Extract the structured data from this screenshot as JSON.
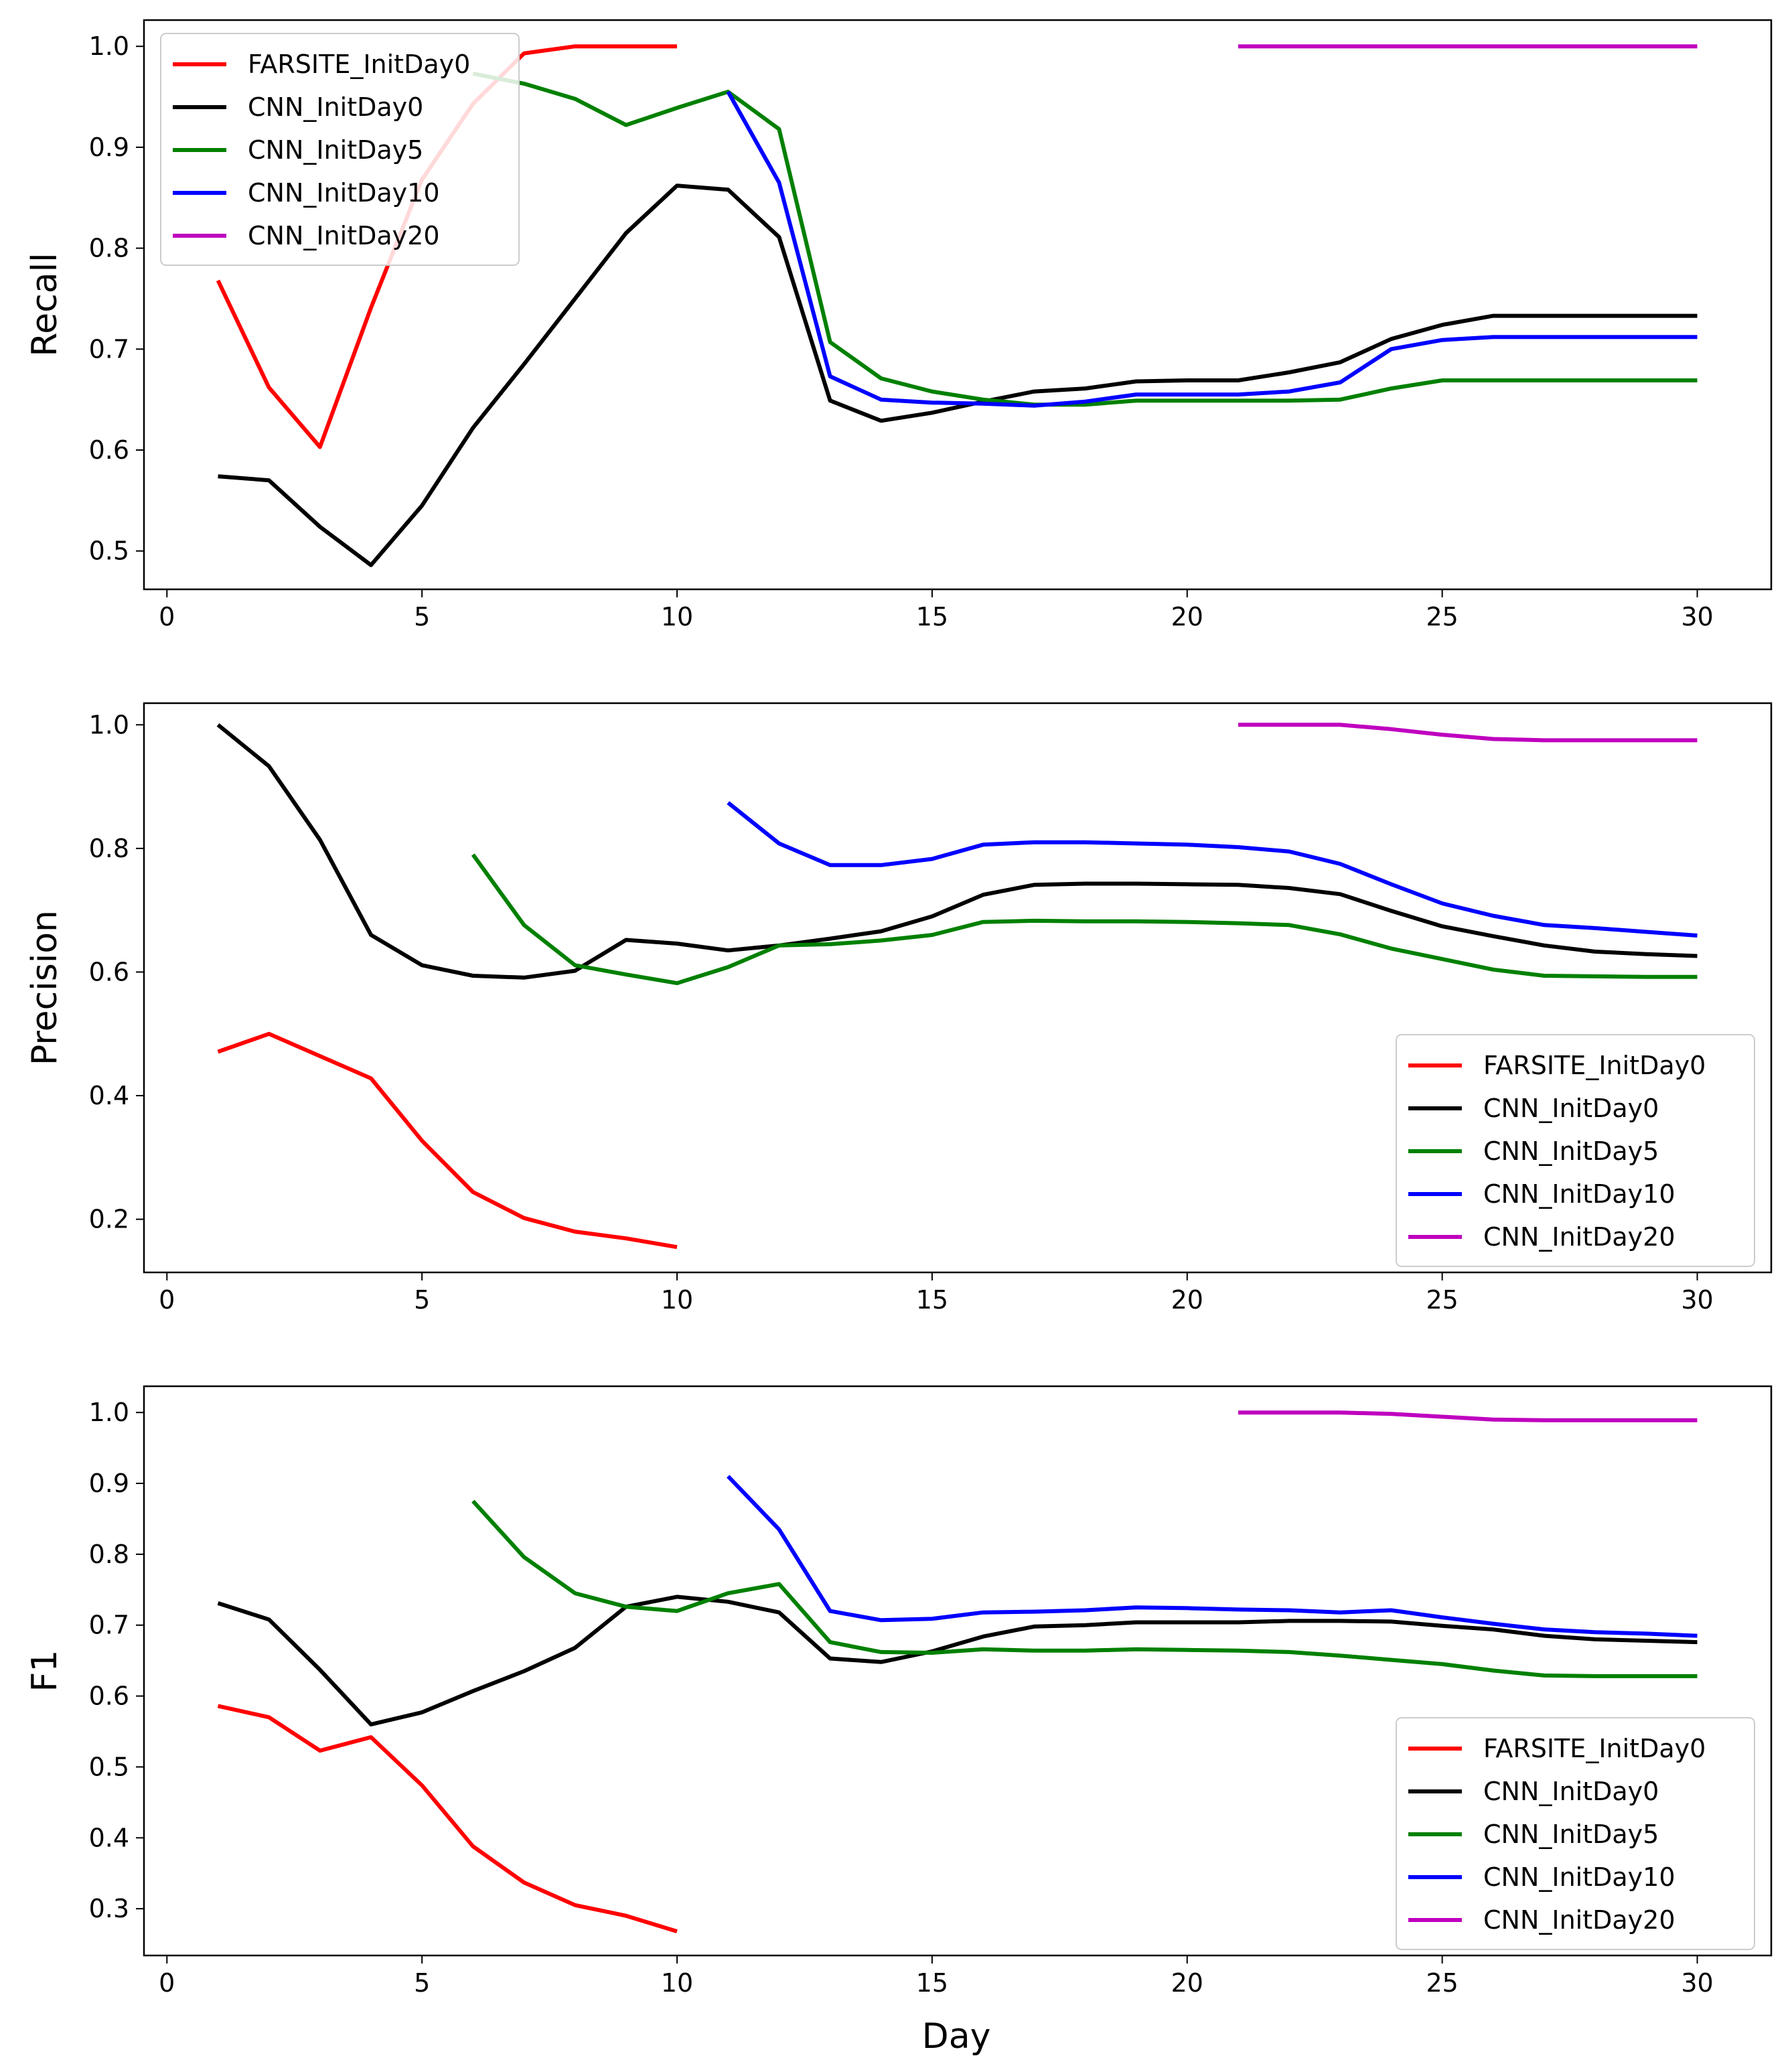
{
  "figure": {
    "xlabel": "Day"
  },
  "chart_data": [
    {
      "type": "line",
      "title": "",
      "xlabel": "",
      "ylabel": "Recall",
      "xlim": [
        -0.45,
        31.45
      ],
      "ylim": [
        0.462,
        1.026
      ],
      "xticks": [
        0,
        5,
        10,
        15,
        20,
        25,
        30
      ],
      "yticks": [
        0.5,
        0.6,
        0.7,
        0.8,
        0.9,
        1.0
      ],
      "xtick_labels": [
        "0",
        "5",
        "10",
        "15",
        "20",
        "25",
        "30"
      ],
      "ytick_labels": [
        "0.5",
        "0.6",
        "0.7",
        "0.8",
        "0.9",
        "1.0"
      ],
      "legend_location": "upper-left",
      "series": [
        {
          "name": "FARSITE_InitDay0",
          "color": "#ff0000",
          "x": [
            1,
            2,
            3,
            4,
            5,
            6,
            7,
            8,
            9,
            10
          ],
          "values": [
            0.768,
            0.662,
            0.603,
            0.741,
            0.868,
            0.943,
            0.993,
            1.0,
            1.0,
            1.0
          ]
        },
        {
          "name": "CNN_InitDay0",
          "color": "#000000",
          "x": [
            1,
            2,
            3,
            4,
            5,
            6,
            7,
            8,
            9,
            10,
            11,
            12,
            13,
            14,
            15,
            16,
            17,
            18,
            19,
            20,
            21,
            22,
            23,
            24,
            25,
            26,
            27,
            28,
            29,
            30
          ],
          "values": [
            0.574,
            0.57,
            0.524,
            0.486,
            0.545,
            0.622,
            0.685,
            0.75,
            0.815,
            0.862,
            0.858,
            0.811,
            0.649,
            0.629,
            0.637,
            0.648,
            0.658,
            0.661,
            0.668,
            0.669,
            0.669,
            0.677,
            0.687,
            0.71,
            0.724,
            0.733,
            0.733,
            0.733,
            0.733,
            0.733
          ]
        },
        {
          "name": "CNN_InitDay5",
          "color": "#008000",
          "x": [
            6,
            7,
            8,
            9,
            10,
            11,
            12,
            13,
            14,
            15,
            16,
            17,
            18,
            19,
            20,
            21,
            22,
            23,
            24,
            25,
            26,
            27,
            28,
            29,
            30
          ],
          "values": [
            0.973,
            0.963,
            0.948,
            0.922,
            0.939,
            0.955,
            0.918,
            0.707,
            0.671,
            0.658,
            0.65,
            0.645,
            0.645,
            0.649,
            0.649,
            0.649,
            0.649,
            0.65,
            0.661,
            0.669,
            0.669,
            0.669,
            0.669,
            0.669,
            0.669
          ]
        },
        {
          "name": "CNN_InitDay10",
          "color": "#0000ff",
          "x": [
            11,
            12,
            13,
            14,
            15,
            16,
            17,
            18,
            19,
            20,
            21,
            22,
            23,
            24,
            25,
            26,
            27,
            28,
            29,
            30
          ],
          "values": [
            0.955,
            0.865,
            0.673,
            0.65,
            0.647,
            0.646,
            0.644,
            0.648,
            0.655,
            0.655,
            0.655,
            0.658,
            0.667,
            0.7,
            0.709,
            0.712,
            0.712,
            0.712,
            0.712,
            0.712
          ]
        },
        {
          "name": "CNN_InitDay20",
          "color": "#bf00bf",
          "x": [
            21,
            22,
            23,
            24,
            25,
            26,
            27,
            28,
            29,
            30
          ],
          "values": [
            1.0,
            1.0,
            1.0,
            1.0,
            1.0,
            1.0,
            1.0,
            1.0,
            1.0,
            1.0
          ]
        }
      ]
    },
    {
      "type": "line",
      "title": "",
      "xlabel": "",
      "ylabel": "Precision",
      "xlim": [
        -0.45,
        31.45
      ],
      "ylim": [
        0.114,
        1.035
      ],
      "xticks": [
        0,
        5,
        10,
        15,
        20,
        25,
        30
      ],
      "yticks": [
        0.2,
        0.4,
        0.6,
        0.8,
        1.0
      ],
      "xtick_labels": [
        "0",
        "5",
        "10",
        "15",
        "20",
        "25",
        "30"
      ],
      "ytick_labels": [
        "0.2",
        "0.4",
        "0.6",
        "0.8",
        "1.0"
      ],
      "legend_location": "lower-right",
      "series": [
        {
          "name": "FARSITE_InitDay0",
          "color": "#ff0000",
          "x": [
            1,
            2,
            3,
            4,
            5,
            6,
            7,
            8,
            9,
            10
          ],
          "values": [
            0.471,
            0.5,
            0.464,
            0.428,
            0.327,
            0.244,
            0.202,
            0.18,
            0.169,
            0.155
          ]
        },
        {
          "name": "CNN_InitDay0",
          "color": "#000000",
          "x": [
            1,
            2,
            3,
            4,
            5,
            6,
            7,
            8,
            9,
            10,
            11,
            12,
            13,
            14,
            15,
            16,
            17,
            18,
            19,
            20,
            21,
            22,
            23,
            24,
            25,
            26,
            27,
            28,
            29,
            30
          ],
          "values": [
            1.0,
            0.933,
            0.814,
            0.66,
            0.611,
            0.594,
            0.591,
            0.602,
            0.652,
            0.646,
            0.635,
            0.643,
            0.654,
            0.666,
            0.69,
            0.725,
            0.741,
            0.743,
            0.743,
            0.742,
            0.741,
            0.736,
            0.726,
            0.699,
            0.674,
            0.658,
            0.643,
            0.633,
            0.629,
            0.626
          ]
        },
        {
          "name": "CNN_InitDay5",
          "color": "#008000",
          "x": [
            6,
            7,
            8,
            9,
            10,
            11,
            12,
            13,
            14,
            15,
            16,
            17,
            18,
            19,
            20,
            21,
            22,
            23,
            24,
            25,
            26,
            27,
            28,
            29,
            30
          ],
          "values": [
            0.79,
            0.676,
            0.611,
            0.596,
            0.582,
            0.608,
            0.643,
            0.645,
            0.651,
            0.66,
            0.681,
            0.683,
            0.682,
            0.682,
            0.681,
            0.679,
            0.676,
            0.661,
            0.638,
            0.621,
            0.604,
            0.594,
            0.593,
            0.592,
            0.592
          ]
        },
        {
          "name": "CNN_InitDay10",
          "color": "#0000ff",
          "x": [
            11,
            12,
            13,
            14,
            15,
            16,
            17,
            18,
            19,
            20,
            21,
            22,
            23,
            24,
            25,
            26,
            27,
            28,
            29,
            30
          ],
          "values": [
            0.874,
            0.808,
            0.773,
            0.773,
            0.783,
            0.806,
            0.81,
            0.81,
            0.808,
            0.806,
            0.802,
            0.795,
            0.775,
            0.742,
            0.711,
            0.691,
            0.676,
            0.671,
            0.665,
            0.659
          ]
        },
        {
          "name": "CNN_InitDay20",
          "color": "#bf00bf",
          "x": [
            21,
            22,
            23,
            24,
            25,
            26,
            27,
            28,
            29,
            30
          ],
          "values": [
            1.0,
            1.0,
            1.0,
            0.993,
            0.984,
            0.977,
            0.975,
            0.975,
            0.975,
            0.975
          ]
        }
      ]
    },
    {
      "type": "line",
      "title": "",
      "xlabel": "Day",
      "ylabel": "F1",
      "xlim": [
        -0.45,
        31.45
      ],
      "ylim": [
        0.234,
        1.037
      ],
      "xticks": [
        0,
        5,
        10,
        15,
        20,
        25,
        30
      ],
      "yticks": [
        0.3,
        0.4,
        0.5,
        0.6,
        0.7,
        0.8,
        0.9,
        1.0
      ],
      "xtick_labels": [
        "0",
        "5",
        "10",
        "15",
        "20",
        "25",
        "30"
      ],
      "ytick_labels": [
        "0.3",
        "0.4",
        "0.5",
        "0.6",
        "0.7",
        "0.8",
        "0.9",
        "1.0"
      ],
      "legend_location": "lower-right",
      "series": [
        {
          "name": "FARSITE_InitDay0",
          "color": "#ff0000",
          "x": [
            1,
            2,
            3,
            4,
            5,
            6,
            7,
            8,
            9,
            10
          ],
          "values": [
            0.586,
            0.57,
            0.523,
            0.542,
            0.474,
            0.388,
            0.337,
            0.305,
            0.29,
            0.268
          ]
        },
        {
          "name": "CNN_InitDay0",
          "color": "#000000",
          "x": [
            1,
            2,
            3,
            4,
            5,
            6,
            7,
            8,
            9,
            10,
            11,
            12,
            13,
            14,
            15,
            16,
            17,
            18,
            19,
            20,
            21,
            22,
            23,
            24,
            25,
            26,
            27,
            28,
            29,
            30
          ],
          "values": [
            0.731,
            0.708,
            0.637,
            0.56,
            0.577,
            0.607,
            0.635,
            0.668,
            0.726,
            0.74,
            0.733,
            0.718,
            0.653,
            0.648,
            0.663,
            0.684,
            0.698,
            0.7,
            0.704,
            0.704,
            0.704,
            0.706,
            0.706,
            0.705,
            0.699,
            0.694,
            0.685,
            0.68,
            0.678,
            0.676
          ]
        },
        {
          "name": "CNN_InitDay5",
          "color": "#008000",
          "x": [
            6,
            7,
            8,
            9,
            10,
            11,
            12,
            13,
            14,
            15,
            16,
            17,
            18,
            19,
            20,
            21,
            22,
            23,
            24,
            25,
            26,
            27,
            28,
            29,
            30
          ],
          "values": [
            0.875,
            0.796,
            0.745,
            0.726,
            0.72,
            0.745,
            0.758,
            0.676,
            0.662,
            0.661,
            0.666,
            0.664,
            0.664,
            0.666,
            0.665,
            0.664,
            0.662,
            0.657,
            0.651,
            0.645,
            0.636,
            0.629,
            0.628,
            0.628,
            0.628
          ]
        },
        {
          "name": "CNN_InitDay10",
          "color": "#0000ff",
          "x": [
            11,
            12,
            13,
            14,
            15,
            16,
            17,
            18,
            19,
            20,
            21,
            22,
            23,
            24,
            25,
            26,
            27,
            28,
            29,
            30
          ],
          "values": [
            0.91,
            0.835,
            0.72,
            0.707,
            0.709,
            0.718,
            0.719,
            0.721,
            0.725,
            0.724,
            0.722,
            0.721,
            0.718,
            0.721,
            0.711,
            0.702,
            0.694,
            0.69,
            0.688,
            0.685
          ]
        },
        {
          "name": "CNN_InitDay20",
          "color": "#bf00bf",
          "x": [
            21,
            22,
            23,
            24,
            25,
            26,
            27,
            28,
            29,
            30
          ],
          "values": [
            1.0,
            1.0,
            1.0,
            0.998,
            0.994,
            0.99,
            0.989,
            0.989,
            0.989,
            0.989
          ]
        }
      ]
    }
  ]
}
